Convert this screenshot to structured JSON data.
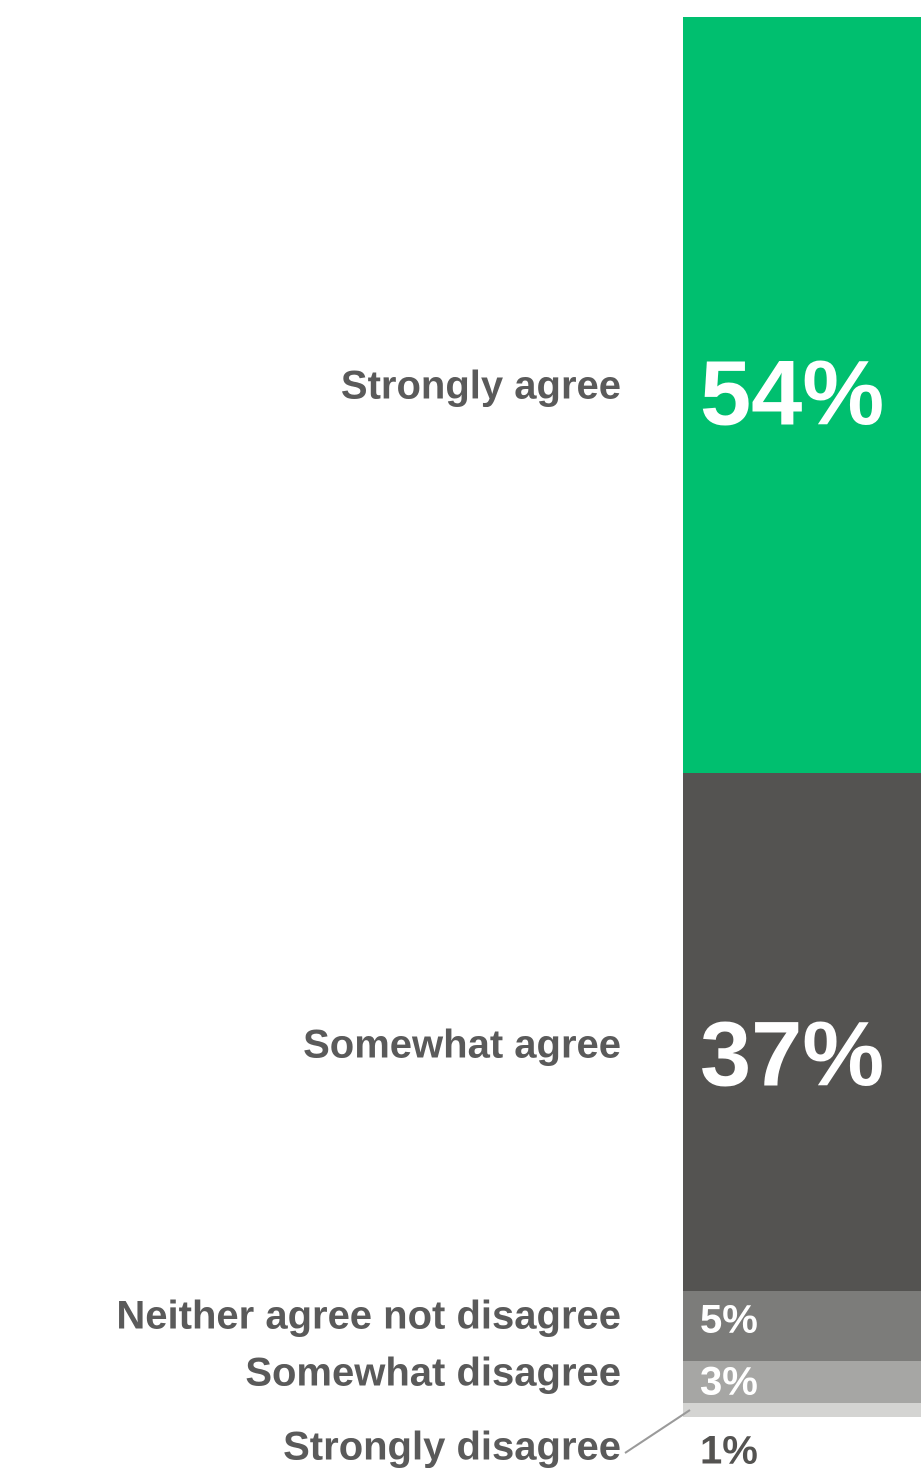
{
  "chart_data": {
    "type": "bar",
    "stacked": true,
    "orientation": "vertical-stack",
    "categories": [
      "Strongly agree",
      "Somewhat agree",
      "Neither agree not disagree",
      "Somewhat disagree",
      "Strongly disagree"
    ],
    "values": [
      54,
      37,
      5,
      3,
      1
    ],
    "value_labels": [
      "54%",
      "37%",
      "5%",
      "3%",
      "1%"
    ],
    "colors": [
      "#00bf6f",
      "#545351",
      "#7c7c7a",
      "#a6a6a4",
      "#d4d4d2"
    ],
    "value_label_colors": [
      "#ffffff",
      "#ffffff",
      "#ffffff",
      "#ffffff",
      "#545351"
    ],
    "title": "",
    "xlabel": "",
    "ylabel": "",
    "ylim": [
      0,
      100
    ],
    "grid": false,
    "legend": "none"
  }
}
